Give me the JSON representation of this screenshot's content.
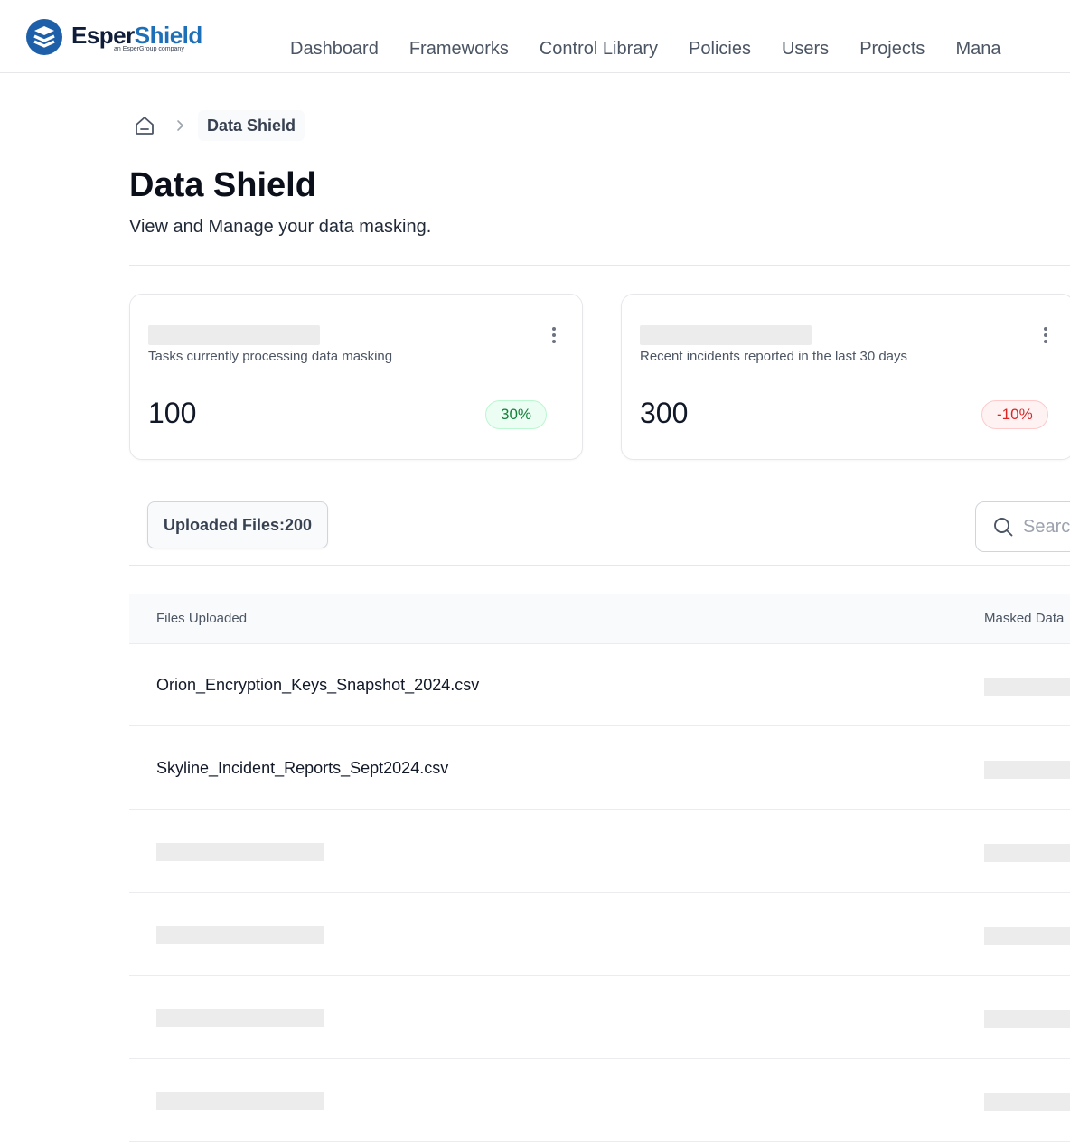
{
  "brand": {
    "name_part1": "Esper",
    "name_part2": "Shield",
    "tagline": "an EsperGroup company",
    "colors": {
      "dark": "#0f1d3a",
      "accent": "#1d6fb8"
    }
  },
  "nav": {
    "items": [
      {
        "label": "Dashboard"
      },
      {
        "label": "Frameworks"
      },
      {
        "label": "Control Library"
      },
      {
        "label": "Policies"
      },
      {
        "label": "Users"
      },
      {
        "label": "Projects"
      },
      {
        "label": "Mana"
      }
    ]
  },
  "breadcrumb": {
    "home_icon": "home-icon",
    "current": "Data Shield"
  },
  "page": {
    "title": "Data Shield",
    "subtitle": "View and Manage your data masking."
  },
  "stats": [
    {
      "description": "Tasks currently processing data masking",
      "value": "100",
      "change": "30%",
      "trend": "up",
      "color": "#15803d"
    },
    {
      "description": "Recent incidents reported in the last 30 days",
      "value": "300",
      "change": "-10%",
      "trend": "down",
      "color": "#dc2626"
    }
  ],
  "toolbar": {
    "uploaded_files_label": "Uploaded Files:200",
    "search_placeholder": "Search"
  },
  "table": {
    "columns": [
      "Files Uploaded",
      "Masked Data"
    ],
    "rows": [
      {
        "file": "Orion_Encryption_Keys_Snapshot_2024.csv"
      },
      {
        "file": "Skyline_Incident_Reports_Sept2024.csv"
      }
    ]
  }
}
